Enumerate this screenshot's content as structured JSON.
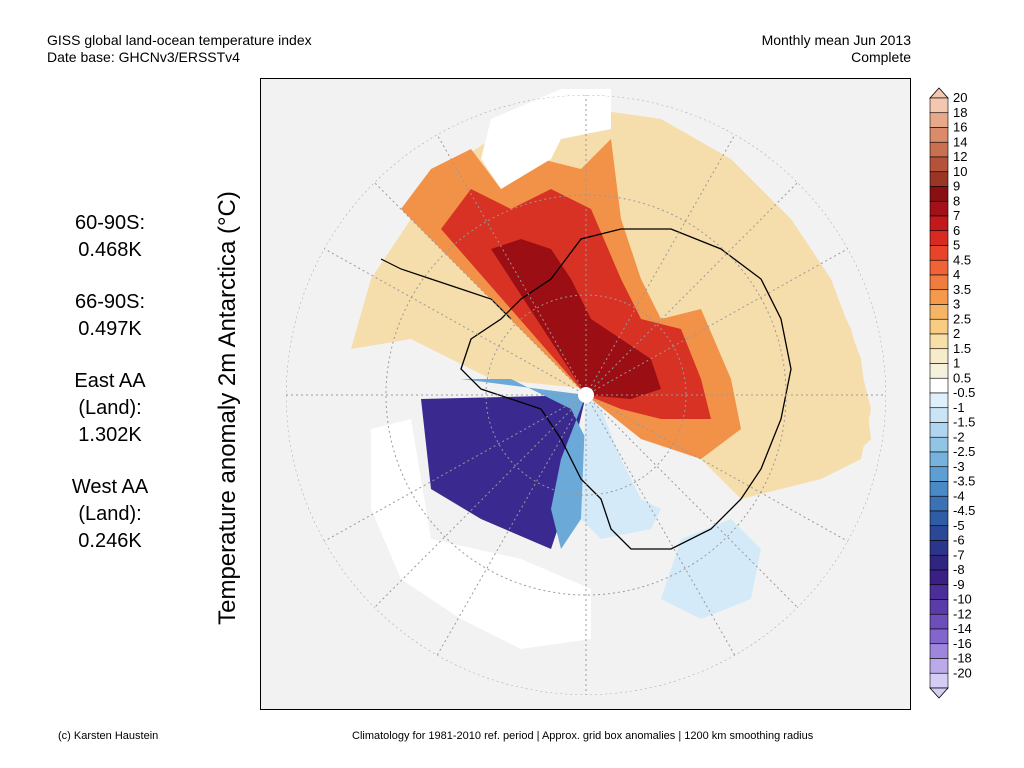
{
  "header": {
    "title": "GISS global land-ocean temperature index",
    "database": "Date base: GHCNv3/ERSSTv4",
    "period": "Monthly mean Jun 2013",
    "status": "Complete"
  },
  "stats": [
    {
      "label": "60-90S:",
      "value": "0.468K"
    },
    {
      "label": "66-90S:",
      "value": "0.497K"
    },
    {
      "label_line1": "East AA",
      "label_line2": "(Land):",
      "value": "1.302K"
    },
    {
      "label_line1": "West AA",
      "label_line2": "(Land):",
      "value": "0.246K"
    }
  ],
  "y_axis_label": "Temperature anomaly 2m Antarctica (°C)",
  "colorbar": {
    "labels": [
      "20",
      "18",
      "16",
      "14",
      "12",
      "10",
      "9",
      "8",
      "7",
      "6",
      "5",
      "4.5",
      "4",
      "3.5",
      "3",
      "2.5",
      "2",
      "1.5",
      "1",
      "0.5",
      "-0.5",
      "-1",
      "-1.5",
      "-2",
      "-2.5",
      "-3",
      "-3.5",
      "-4",
      "-4.5",
      "-5",
      "-6",
      "-7",
      "-8",
      "-9",
      "-10",
      "-12",
      "-14",
      "-16",
      "-18",
      "-20"
    ],
    "colors": [
      "#f4c7b0",
      "#e8a98a",
      "#d98b6c",
      "#c96f52",
      "#b5523b",
      "#9b3526",
      "#8a0f12",
      "#a3101a",
      "#c3191d",
      "#d92a22",
      "#e8442a",
      "#ef6337",
      "#f17c3f",
      "#f59a4c",
      "#f6b565",
      "#f8cc83",
      "#f7dfa8",
      "#f6ecc9",
      "#f5f1dc",
      "#ffffff",
      "#e0f0fb",
      "#c8e4f5",
      "#afd6ee",
      "#92c4e6",
      "#76b2dd",
      "#5d9fd3",
      "#4989c5",
      "#3a72b5",
      "#2f5ca5",
      "#2a4798",
      "#2b358b",
      "#302680",
      "#3a2085",
      "#4b2f98",
      "#5a3ca8",
      "#6c4fbb",
      "#8366cd",
      "#9e86dc",
      "#bba9ea",
      "#d6cdf4"
    ]
  },
  "map": {
    "anomaly_colors": {
      "warm_strong": "#9b0e14",
      "warm_mid": "#d83224",
      "warm_light": "#f29248",
      "warm_pale": "#f6ddac",
      "cool_light": "#d4eaf8",
      "cool_mid": "#6aa9d8",
      "cool_strong": "#3a2a90",
      "no_data": "#ffffff",
      "missing": "#f2f2f2"
    }
  },
  "footer": {
    "credit": "(c) Karsten Haustein",
    "note": "Climatology for 1981-2010 ref. period | Approx. grid box anomalies | 1200 km smoothing radius"
  }
}
